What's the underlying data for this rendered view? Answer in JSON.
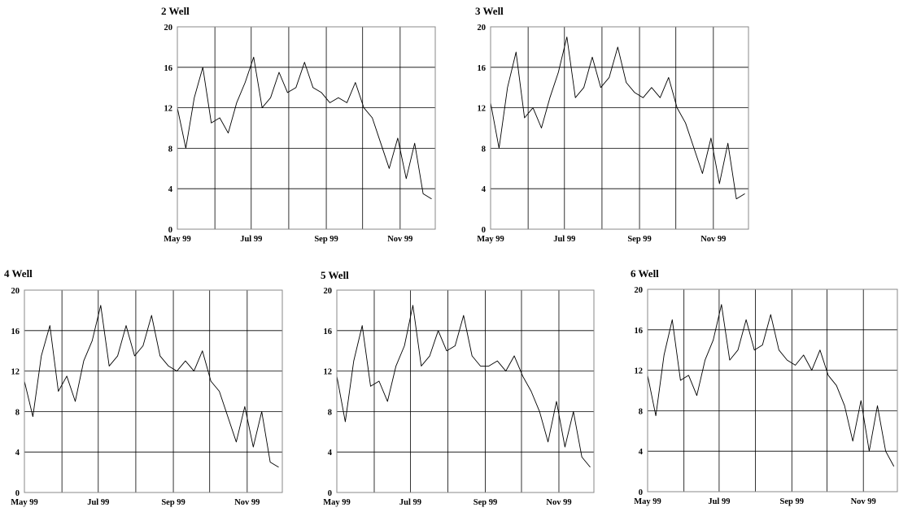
{
  "chart_data": [
    {
      "type": "line",
      "title": "2 Well",
      "xlabel": "",
      "ylabel": "",
      "x_ticks": [
        "May 99",
        "Jul 99",
        "Sep 99",
        "Nov 99"
      ],
      "y_ticks": [
        "0",
        "4",
        "8",
        "12",
        "16",
        "20"
      ],
      "ylim": [
        0,
        20
      ],
      "xlim": [
        "1999-05-01",
        "1999-11-30"
      ],
      "grid": true,
      "series": [
        {
          "x": [
            "1999-05-01",
            "1999-05-08",
            "1999-05-15",
            "1999-05-22",
            "1999-05-29",
            "1999-06-05",
            "1999-06-12",
            "1999-06-19",
            "1999-06-26",
            "1999-07-03",
            "1999-07-10",
            "1999-07-17",
            "1999-07-24",
            "1999-07-31",
            "1999-08-07",
            "1999-08-14",
            "1999-08-21",
            "1999-08-28",
            "1999-09-04",
            "1999-09-11",
            "1999-09-18",
            "1999-09-25",
            "1999-10-02",
            "1999-10-09",
            "1999-10-16",
            "1999-10-23",
            "1999-10-30",
            "1999-11-06",
            "1999-11-13",
            "1999-11-20",
            "1999-11-27"
          ],
          "values": [
            12.0,
            8.0,
            13.0,
            16.0,
            10.5,
            11.0,
            9.5,
            12.5,
            14.5,
            17.0,
            12.0,
            13.0,
            15.5,
            13.5,
            14.0,
            16.5,
            14.0,
            13.5,
            12.5,
            13.0,
            12.5,
            14.5,
            12.0,
            11.0,
            8.5,
            6.0,
            9.0,
            5.0,
            8.5,
            3.5,
            3.0
          ]
        }
      ]
    },
    {
      "type": "line",
      "title": "3 Well",
      "xlabel": "",
      "ylabel": "",
      "x_ticks": [
        "May 99",
        "Jul 99",
        "Sep 99",
        "Nov 99"
      ],
      "y_ticks": [
        "0",
        "4",
        "8",
        "12",
        "16",
        "20"
      ],
      "ylim": [
        0,
        20
      ],
      "xlim": [
        "1999-05-01",
        "1999-11-30"
      ],
      "grid": true,
      "series": [
        {
          "x": [
            "1999-05-01",
            "1999-05-08",
            "1999-05-15",
            "1999-05-22",
            "1999-05-29",
            "1999-06-05",
            "1999-06-12",
            "1999-06-19",
            "1999-06-26",
            "1999-07-03",
            "1999-07-10",
            "1999-07-17",
            "1999-07-24",
            "1999-07-31",
            "1999-08-07",
            "1999-08-14",
            "1999-08-21",
            "1999-08-28",
            "1999-09-04",
            "1999-09-11",
            "1999-09-18",
            "1999-09-25",
            "1999-10-02",
            "1999-10-09",
            "1999-10-16",
            "1999-10-23",
            "1999-10-30",
            "1999-11-06",
            "1999-11-13",
            "1999-11-20",
            "1999-11-27"
          ],
          "values": [
            12.5,
            8.0,
            14.0,
            17.5,
            11.0,
            12.0,
            10.0,
            13.0,
            15.5,
            19.0,
            13.0,
            14.0,
            17.0,
            14.0,
            15.0,
            18.0,
            14.5,
            13.5,
            13.0,
            14.0,
            13.0,
            15.0,
            12.0,
            10.5,
            8.0,
            5.5,
            9.0,
            4.5,
            8.5,
            3.0,
            3.5
          ]
        }
      ]
    },
    {
      "type": "line",
      "title": "4 Well",
      "xlabel": "",
      "ylabel": "",
      "x_ticks": [
        "May 99",
        "Jul 99",
        "Sep 99",
        "Nov 99"
      ],
      "y_ticks": [
        "0",
        "4",
        "8",
        "12",
        "16",
        "20"
      ],
      "ylim": [
        0,
        20
      ],
      "xlim": [
        "1999-05-01",
        "1999-11-30"
      ],
      "grid": true,
      "series": [
        {
          "x": [
            "1999-05-01",
            "1999-05-08",
            "1999-05-15",
            "1999-05-22",
            "1999-05-29",
            "1999-06-05",
            "1999-06-12",
            "1999-06-19",
            "1999-06-26",
            "1999-07-03",
            "1999-07-10",
            "1999-07-17",
            "1999-07-24",
            "1999-07-31",
            "1999-08-07",
            "1999-08-14",
            "1999-08-21",
            "1999-08-28",
            "1999-09-04",
            "1999-09-11",
            "1999-09-18",
            "1999-09-25",
            "1999-10-02",
            "1999-10-09",
            "1999-10-16",
            "1999-10-23",
            "1999-10-30",
            "1999-11-06",
            "1999-11-13",
            "1999-11-20",
            "1999-11-27"
          ],
          "values": [
            11.0,
            7.5,
            13.5,
            16.5,
            10.0,
            11.5,
            9.0,
            13.0,
            15.0,
            18.5,
            12.5,
            13.5,
            16.5,
            13.5,
            14.5,
            17.5,
            13.5,
            12.5,
            12.0,
            13.0,
            12.0,
            14.0,
            11.0,
            10.0,
            7.5,
            5.0,
            8.5,
            4.5,
            8.0,
            3.0,
            2.5
          ]
        }
      ]
    },
    {
      "type": "line",
      "title": "5 Well",
      "xlabel": "",
      "ylabel": "",
      "x_ticks": [
        "May 99",
        "Jul 99",
        "Sep 99",
        "Nov 99"
      ],
      "y_ticks": [
        "0",
        "4",
        "8",
        "12",
        "16",
        "20"
      ],
      "ylim": [
        0,
        20
      ],
      "xlim": [
        "1999-05-01",
        "1999-11-30"
      ],
      "grid": true,
      "series": [
        {
          "x": [
            "1999-05-01",
            "1999-05-08",
            "1999-05-15",
            "1999-05-22",
            "1999-05-29",
            "1999-06-05",
            "1999-06-12",
            "1999-06-19",
            "1999-06-26",
            "1999-07-03",
            "1999-07-10",
            "1999-07-17",
            "1999-07-24",
            "1999-07-31",
            "1999-08-07",
            "1999-08-14",
            "1999-08-21",
            "1999-08-28",
            "1999-09-04",
            "1999-09-11",
            "1999-09-18",
            "1999-09-25",
            "1999-10-02",
            "1999-10-09",
            "1999-10-16",
            "1999-10-23",
            "1999-10-30",
            "1999-11-06",
            "1999-11-13",
            "1999-11-20",
            "1999-11-27"
          ],
          "values": [
            11.5,
            7.0,
            13.0,
            16.5,
            10.5,
            11.0,
            9.0,
            12.5,
            14.5,
            18.5,
            12.5,
            13.5,
            16.0,
            14.0,
            14.5,
            17.5,
            13.5,
            12.5,
            12.5,
            13.0,
            12.0,
            13.5,
            11.5,
            10.0,
            8.0,
            5.0,
            9.0,
            4.5,
            8.0,
            3.5,
            2.5
          ]
        }
      ]
    },
    {
      "type": "line",
      "title": "6 Well",
      "xlabel": "",
      "ylabel": "",
      "x_ticks": [
        "May 99",
        "Jul 99",
        "Sep 99",
        "Nov 99"
      ],
      "y_ticks": [
        "0",
        "4",
        "8",
        "12",
        "16",
        "20"
      ],
      "ylim": [
        0,
        20
      ],
      "xlim": [
        "1999-05-01",
        "1999-11-30"
      ],
      "grid": true,
      "series": [
        {
          "x": [
            "1999-05-01",
            "1999-05-08",
            "1999-05-15",
            "1999-05-22",
            "1999-05-29",
            "1999-06-05",
            "1999-06-12",
            "1999-06-19",
            "1999-06-26",
            "1999-07-03",
            "1999-07-10",
            "1999-07-17",
            "1999-07-24",
            "1999-07-31",
            "1999-08-07",
            "1999-08-14",
            "1999-08-21",
            "1999-08-28",
            "1999-09-04",
            "1999-09-11",
            "1999-09-18",
            "1999-09-25",
            "1999-10-02",
            "1999-10-09",
            "1999-10-16",
            "1999-10-23",
            "1999-10-30",
            "1999-11-06",
            "1999-11-13",
            "1999-11-20",
            "1999-11-27"
          ],
          "values": [
            11.5,
            7.5,
            13.5,
            17.0,
            11.0,
            11.5,
            9.5,
            13.0,
            15.0,
            18.5,
            13.0,
            14.0,
            17.0,
            14.0,
            14.5,
            17.5,
            14.0,
            13.0,
            12.5,
            13.5,
            12.0,
            14.0,
            11.5,
            10.5,
            8.5,
            5.0,
            9.0,
            4.0,
            8.5,
            4.0,
            2.5
          ]
        }
      ]
    }
  ]
}
